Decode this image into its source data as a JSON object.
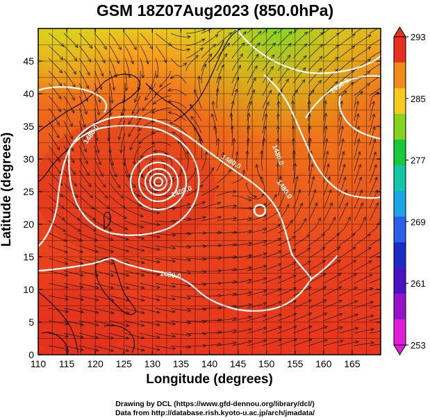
{
  "title": "GSM 18Z07Aug2023 (850.0hPa)",
  "map": {
    "xlabel": "Longitude (degrees)",
    "ylabel": "Latitude  (degrees)",
    "xrange": [
      110,
      170
    ],
    "yrange": [
      0,
      50
    ],
    "xticks": [
      110,
      115,
      120,
      125,
      130,
      135,
      140,
      145,
      150,
      155,
      160,
      165
    ],
    "yticks": [
      0,
      5,
      10,
      15,
      20,
      25,
      30,
      35,
      40,
      45
    ],
    "grid": true,
    "contour_labels": [
      "1480.0",
      "1480.0",
      "1480.0",
      "1480.0",
      "1480.0",
      "1480.0",
      "1480.0"
    ],
    "typhoon_center": {
      "lon": 131,
      "lat": 28.5
    },
    "secondary_low": {
      "lon": 148.5,
      "lat": 24.5
    }
  },
  "colorbar": {
    "ticks": [
      "293",
      "285",
      "277",
      "269",
      "261",
      "253"
    ],
    "colors": [
      "#e8301e",
      "#f08a1a",
      "#f7c81e",
      "#86d21e",
      "#19c93a",
      "#13c6a8",
      "#1aa6e6",
      "#2d5ee8",
      "#1c2ac8",
      "#4a12c0",
      "#9612c8",
      "#e01ed8"
    ]
  },
  "credits": {
    "line1": "Drawing by DCL (https://www.gfd-dennou.org/library/dcl/)",
    "line2": "Data from http://database.rish.kyoto-u.ac.jp/arch/jmadata/"
  }
}
